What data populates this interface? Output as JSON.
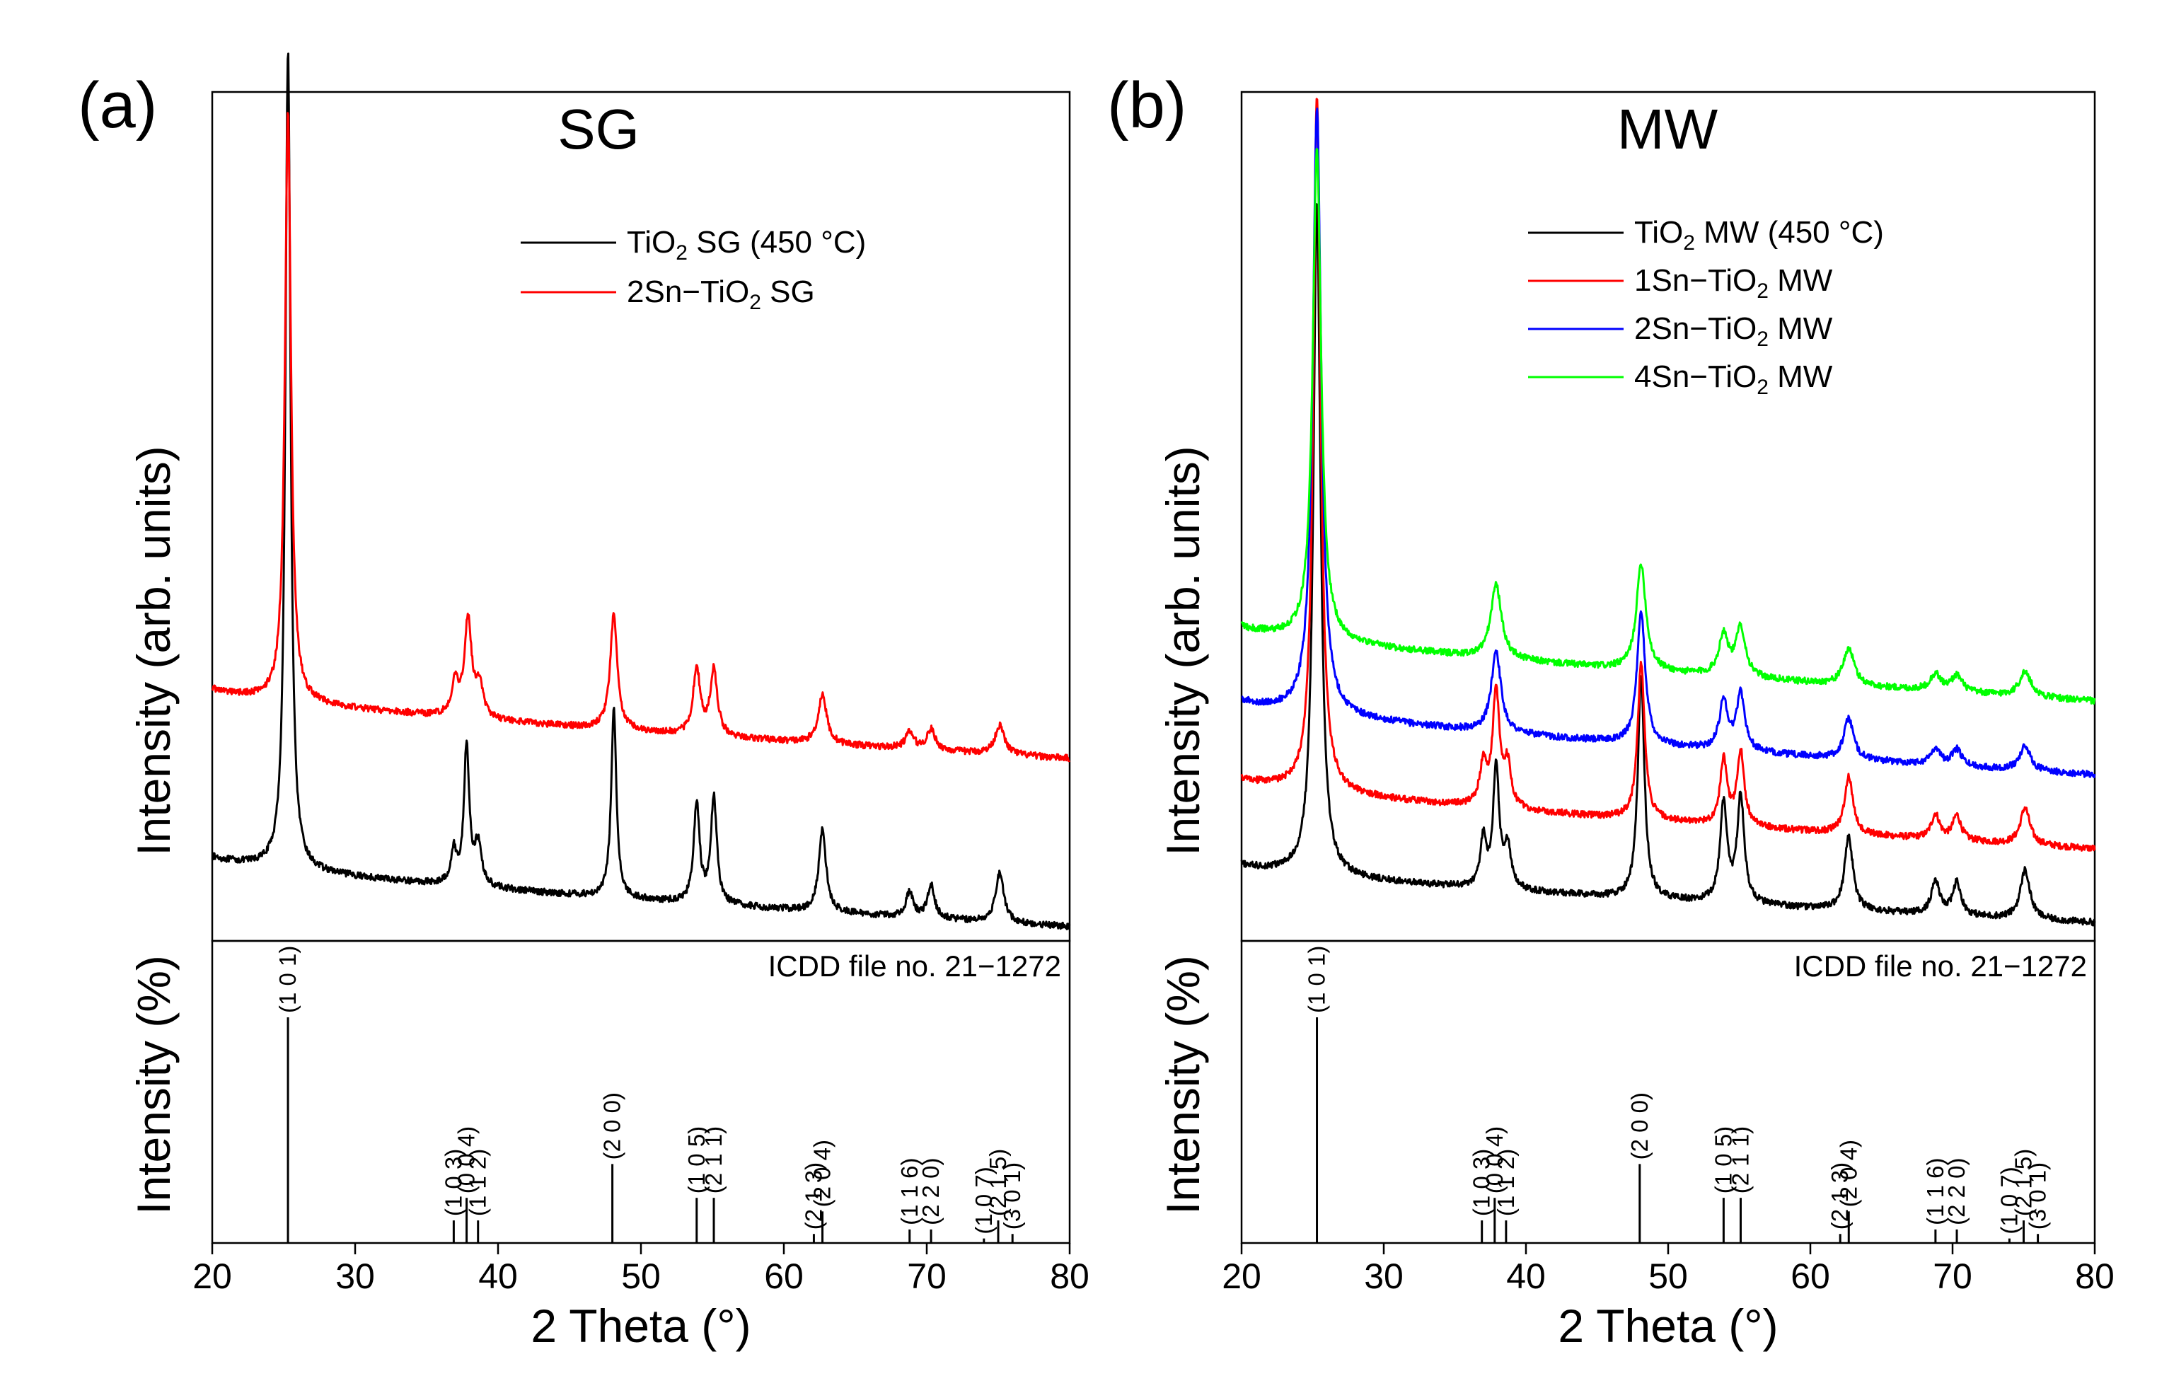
{
  "chart_data": [
    {
      "type": "line",
      "panel_label": "(a)",
      "title": "SG",
      "xlabel": "2 Theta (°)",
      "ylabel_top": "Intensity (arb. units)",
      "ylabel_bottom": "Intensity (%)",
      "xlim": [
        20,
        80
      ],
      "xticks": [
        20,
        30,
        40,
        50,
        60,
        70,
        80
      ],
      "xtick_labels": [
        "20",
        "30",
        "40",
        "50",
        "60",
        "70",
        "80"
      ],
      "legend_position": "top-right",
      "legend": [
        {
          "pre": "TiO",
          "sub": "2",
          "post": " SG (450 °C)",
          "color": "#000000"
        },
        {
          "pre": "2Sn−TiO",
          "sub": "2",
          "post": " SG",
          "color": "#ff0000"
        }
      ],
      "series": [
        {
          "name": "TiO2 SG (450 °C)",
          "color": "#000000",
          "start": 0.085,
          "end": 0.0,
          "noise": 0.008,
          "peaks": [
            [
              25.3,
              1.0,
              0.22
            ],
            [
              36.9,
              0.04,
              0.25
            ],
            [
              37.8,
              0.17,
              0.22
            ],
            [
              38.6,
              0.05,
              0.3
            ],
            [
              48.1,
              0.23,
              0.22
            ],
            [
              53.9,
              0.12,
              0.25
            ],
            [
              55.1,
              0.13,
              0.25
            ],
            [
              62.7,
              0.1,
              0.3
            ],
            [
              68.8,
              0.03,
              0.3
            ],
            [
              70.3,
              0.04,
              0.3
            ],
            [
              75.1,
              0.06,
              0.35
            ]
          ]
        },
        {
          "name": "2Sn-TiO2 SG",
          "color": "#ff0000",
          "start": 0.29,
          "end": 0.205,
          "noise": 0.008,
          "peaks": [
            [
              25.3,
              0.72,
              0.25
            ],
            [
              37.0,
              0.04,
              0.3
            ],
            [
              37.9,
              0.12,
              0.3
            ],
            [
              38.7,
              0.04,
              0.3
            ],
            [
              48.1,
              0.14,
              0.3
            ],
            [
              53.9,
              0.08,
              0.3
            ],
            [
              55.1,
              0.08,
              0.3
            ],
            [
              62.7,
              0.06,
              0.35
            ],
            [
              68.8,
              0.02,
              0.35
            ],
            [
              70.3,
              0.025,
              0.35
            ],
            [
              75.1,
              0.035,
              0.4
            ]
          ]
        }
      ],
      "reference": {
        "label": "ICDD file no.  21−1272",
        "peaks": [
          {
            "hkl": "(1 0 1)",
            "pos": 25.3,
            "intensity": 100
          },
          {
            "hkl": "(1 0 3)",
            "pos": 36.9,
            "intensity": 10
          },
          {
            "hkl": "(0 0 4)",
            "pos": 37.8,
            "intensity": 20
          },
          {
            "hkl": "(1 1 2)",
            "pos": 38.6,
            "intensity": 10
          },
          {
            "hkl": "(2 0 0)",
            "pos": 48.0,
            "intensity": 35
          },
          {
            "hkl": "(1 0 5)",
            "pos": 53.9,
            "intensity": 20
          },
          {
            "hkl": "(2 1 1)",
            "pos": 55.1,
            "intensity": 20
          },
          {
            "hkl": "(2 1 3)",
            "pos": 62.1,
            "intensity": 4
          },
          {
            "hkl": "(2 0 4)",
            "pos": 62.7,
            "intensity": 14
          },
          {
            "hkl": "(1 1 6)",
            "pos": 68.8,
            "intensity": 6
          },
          {
            "hkl": "(2 2 0)",
            "pos": 70.3,
            "intensity": 6
          },
          {
            "hkl": "(1 0 7)",
            "pos": 74.0,
            "intensity": 2
          },
          {
            "hkl": "(2 1 5)",
            "pos": 75.0,
            "intensity": 10
          },
          {
            "hkl": "(3 0 1)",
            "pos": 76.0,
            "intensity": 4
          }
        ]
      }
    },
    {
      "type": "line",
      "panel_label": "(b)",
      "title": "MW",
      "xlabel": "2 Theta (°)",
      "ylabel_top": "Intensity (arb. units)",
      "ylabel_bottom": "Intensity (%)",
      "xlim": [
        20,
        80
      ],
      "xticks": [
        20,
        30,
        40,
        50,
        60,
        70,
        80
      ],
      "xtick_labels": [
        "20",
        "30",
        "40",
        "50",
        "60",
        "70",
        "80"
      ],
      "legend_position": "top-right",
      "legend": [
        {
          "pre": "TiO",
          "sub": "2",
          "post": " MW (450 °C)",
          "color": "#000000"
        },
        {
          "pre": "1Sn−TiO",
          "sub": "2",
          "post": " MW",
          "color": "#ff0000"
        },
        {
          "pre": "2Sn−TiO",
          "sub": "2",
          "post": " MW",
          "color": "#0000ff"
        },
        {
          "pre": "4Sn−TiO",
          "sub": "2",
          "post": " MW",
          "color": "#00ff00"
        }
      ],
      "series": [
        {
          "name": "TiO2 MW (450 °C)",
          "color": "#000000",
          "start": 0.075,
          "end": 0.005,
          "noise": 0.008,
          "peaks": [
            [
              25.3,
              0.82,
              0.3
            ],
            [
              37.0,
              0.06,
              0.25
            ],
            [
              37.9,
              0.15,
              0.25
            ],
            [
              38.7,
              0.05,
              0.3
            ],
            [
              48.1,
              0.27,
              0.28
            ],
            [
              53.9,
              0.12,
              0.3
            ],
            [
              55.1,
              0.13,
              0.3
            ],
            [
              62.7,
              0.09,
              0.35
            ],
            [
              68.8,
              0.04,
              0.35
            ],
            [
              70.3,
              0.04,
              0.35
            ],
            [
              75.1,
              0.06,
              0.4
            ]
          ]
        },
        {
          "name": "1Sn-TiO2 MW",
          "color": "#ff0000",
          "start": 0.18,
          "end": 0.095,
          "noise": 0.008,
          "peaks": [
            [
              25.3,
              0.85,
              0.3
            ],
            [
              37.0,
              0.05,
              0.3
            ],
            [
              37.9,
              0.14,
              0.3
            ],
            [
              38.7,
              0.05,
              0.3
            ],
            [
              48.1,
              0.19,
              0.3
            ],
            [
              53.9,
              0.08,
              0.3
            ],
            [
              55.1,
              0.09,
              0.3
            ],
            [
              62.7,
              0.07,
              0.35
            ],
            [
              68.8,
              0.03,
              0.35
            ],
            [
              70.3,
              0.03,
              0.35
            ],
            [
              75.1,
              0.045,
              0.4
            ]
          ]
        },
        {
          "name": "2Sn-TiO2 MW",
          "color": "#0000ff",
          "start": 0.275,
          "end": 0.185,
          "noise": 0.008,
          "peaks": [
            [
              25.3,
              0.74,
              0.35
            ],
            [
              37.9,
              0.1,
              0.4
            ],
            [
              48.1,
              0.16,
              0.35
            ],
            [
              53.9,
              0.06,
              0.35
            ],
            [
              55.1,
              0.07,
              0.35
            ],
            [
              62.7,
              0.05,
              0.4
            ],
            [
              68.8,
              0.02,
              0.4
            ],
            [
              70.3,
              0.02,
              0.4
            ],
            [
              75.1,
              0.03,
              0.45
            ]
          ]
        },
        {
          "name": "4Sn-TiO2 MW",
          "color": "#00ff00",
          "start": 0.365,
          "end": 0.275,
          "noise": 0.008,
          "peaks": [
            [
              25.3,
              0.6,
              0.35
            ],
            [
              37.9,
              0.09,
              0.45
            ],
            [
              48.1,
              0.13,
              0.4
            ],
            [
              53.9,
              0.05,
              0.4
            ],
            [
              55.1,
              0.06,
              0.4
            ],
            [
              62.7,
              0.045,
              0.45
            ],
            [
              68.8,
              0.02,
              0.45
            ],
            [
              70.3,
              0.02,
              0.45
            ],
            [
              75.1,
              0.03,
              0.5
            ]
          ]
        }
      ],
      "reference": {
        "label": "ICDD file no.  21−1272",
        "peaks": [
          {
            "hkl": "(1 0 1)",
            "pos": 25.3,
            "intensity": 100
          },
          {
            "hkl": "(1 0 3)",
            "pos": 36.9,
            "intensity": 10
          },
          {
            "hkl": "(0 0 4)",
            "pos": 37.8,
            "intensity": 20
          },
          {
            "hkl": "(1 1 2)",
            "pos": 38.6,
            "intensity": 10
          },
          {
            "hkl": "(2 0 0)",
            "pos": 48.0,
            "intensity": 35
          },
          {
            "hkl": "(1 0 5)",
            "pos": 53.9,
            "intensity": 20
          },
          {
            "hkl": "(2 1 1)",
            "pos": 55.1,
            "intensity": 20
          },
          {
            "hkl": "(2 1 3)",
            "pos": 62.1,
            "intensity": 4
          },
          {
            "hkl": "(2 0 4)",
            "pos": 62.7,
            "intensity": 14
          },
          {
            "hkl": "(1 1 6)",
            "pos": 68.8,
            "intensity": 6
          },
          {
            "hkl": "(2 2 0)",
            "pos": 70.3,
            "intensity": 6
          },
          {
            "hkl": "(1 0 7)",
            "pos": 74.0,
            "intensity": 2
          },
          {
            "hkl": "(2 1 5)",
            "pos": 75.0,
            "intensity": 10
          },
          {
            "hkl": "(3 0 1)",
            "pos": 76.0,
            "intensity": 4
          }
        ]
      }
    }
  ]
}
